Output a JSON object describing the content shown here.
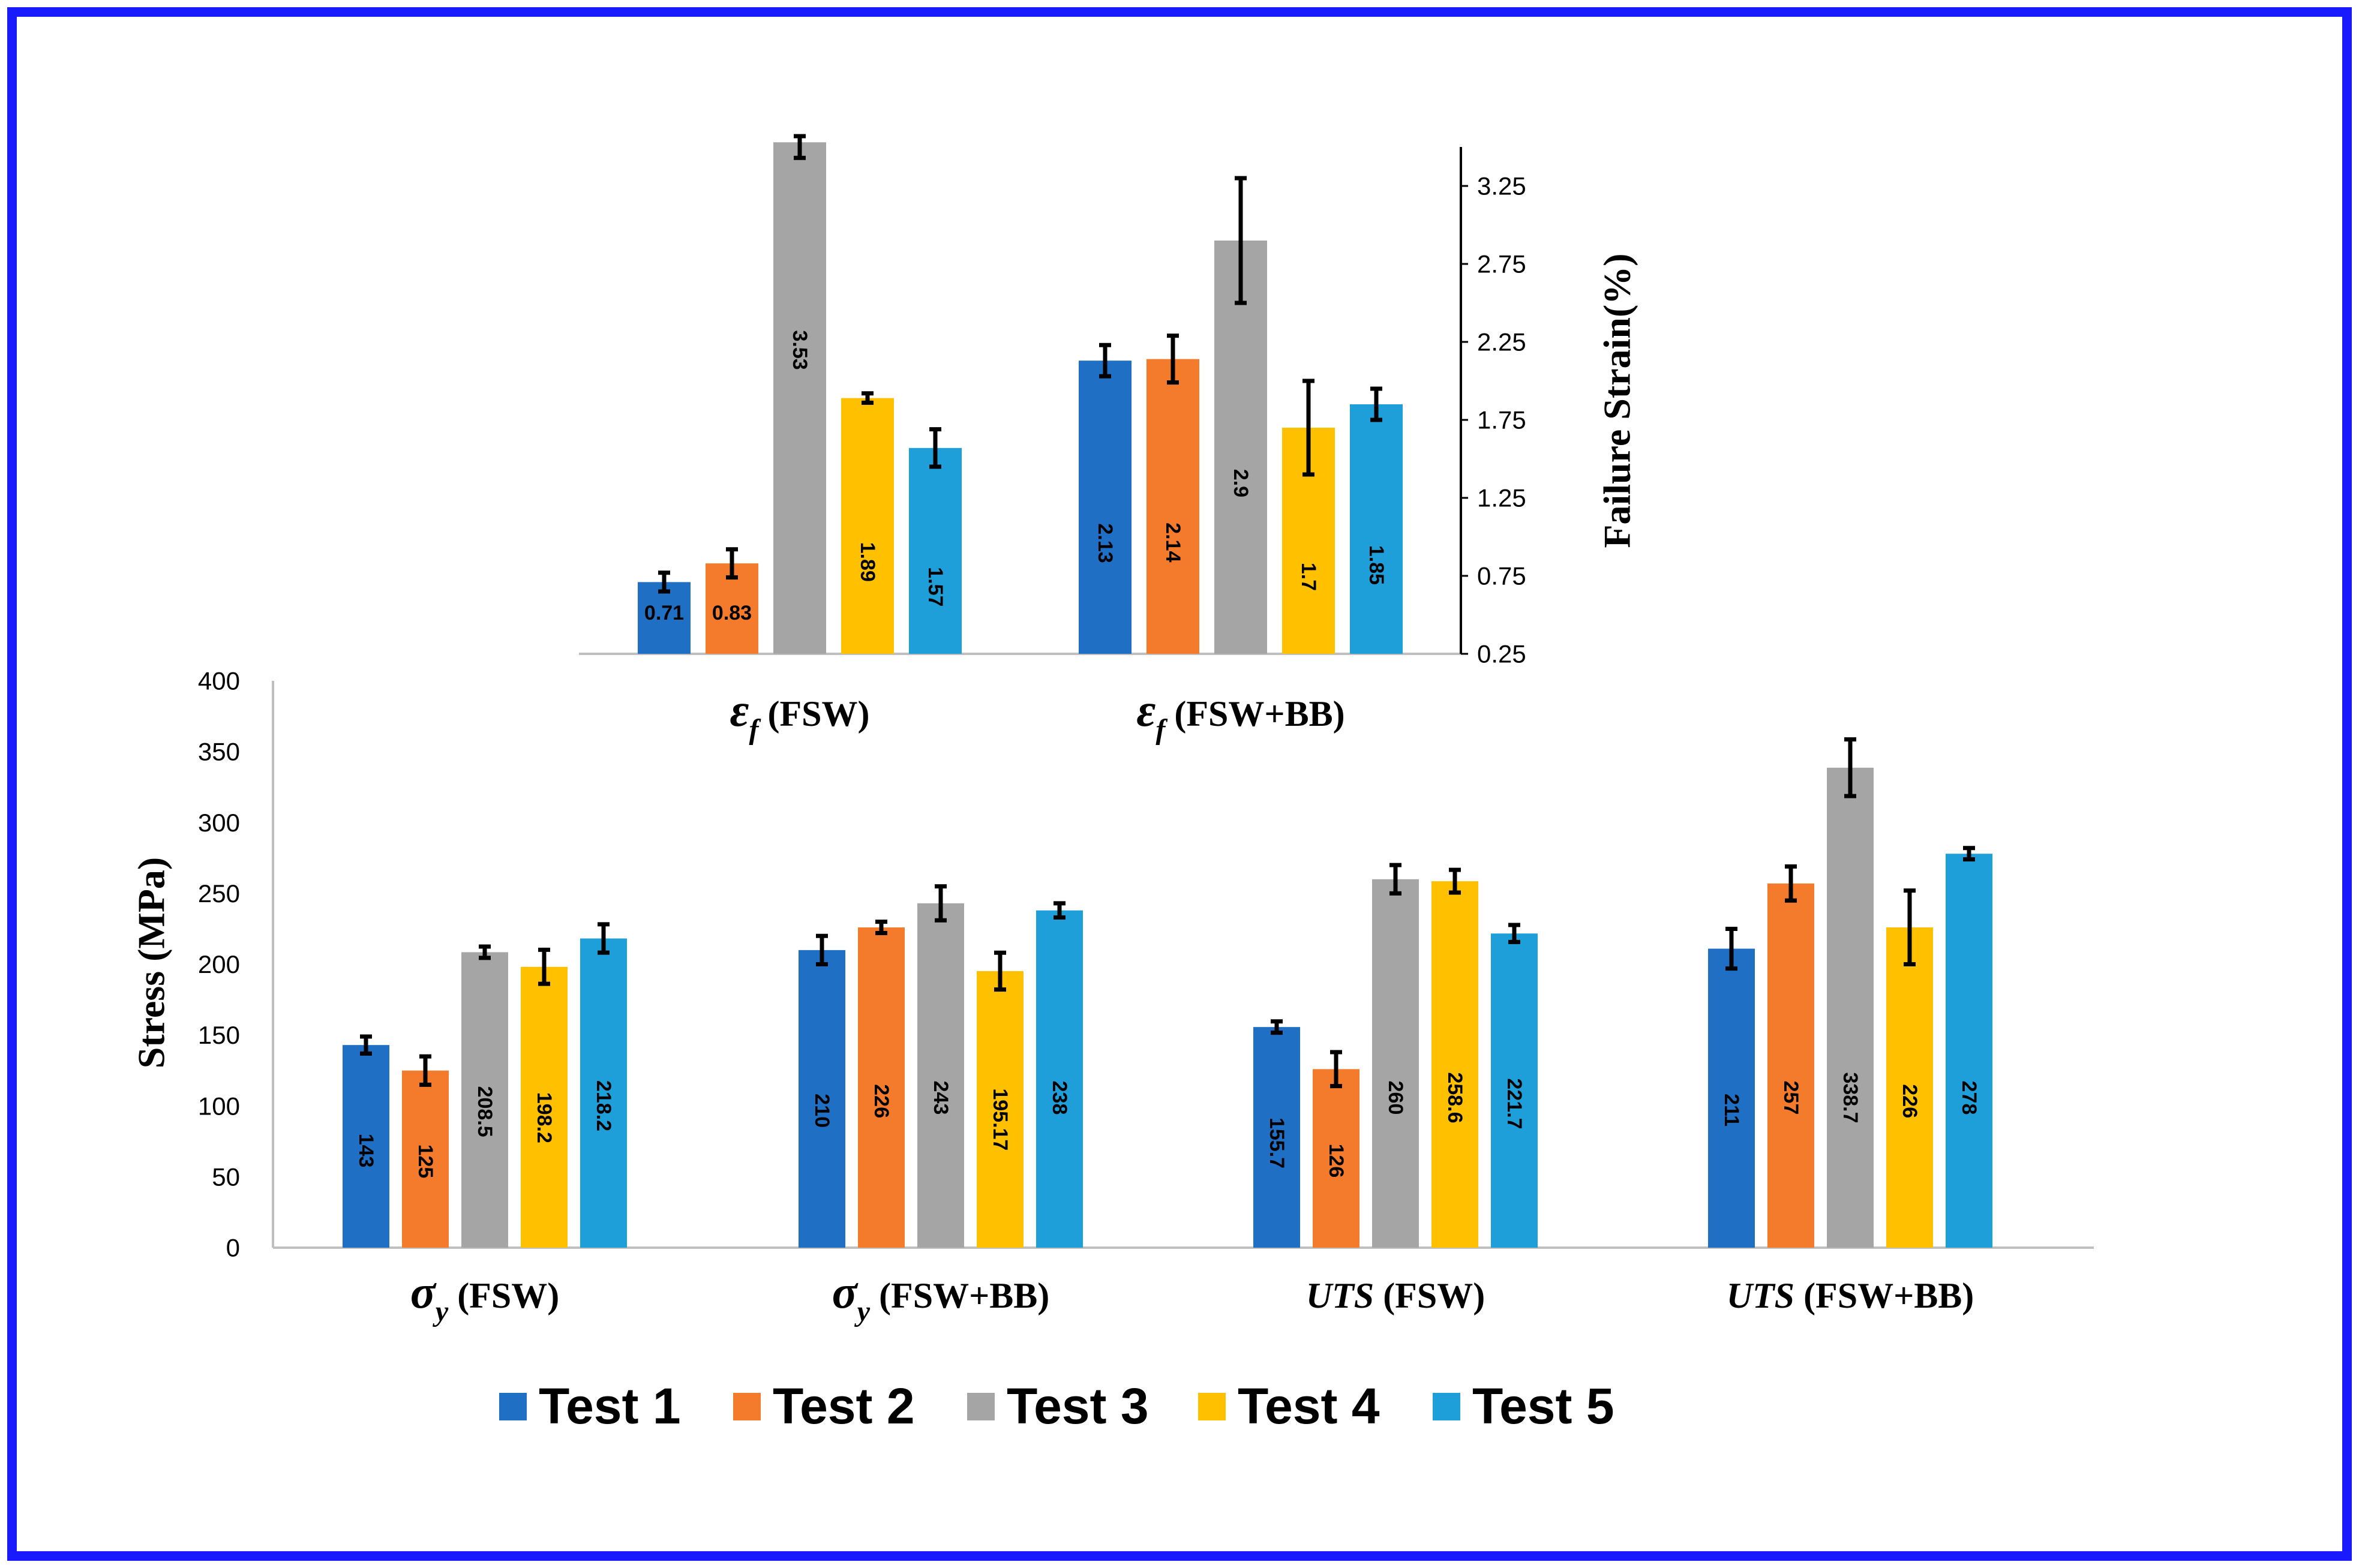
{
  "colors": {
    "frame": "#1a1aff",
    "series": [
      "#1f6fc5",
      "#f47b2b",
      "#a5a5a5",
      "#ffc000",
      "#1f9fd9"
    ],
    "axis": "#bfbfbf",
    "error_bar": "#000000"
  },
  "legend": [
    "Test 1",
    "Test 2",
    "Test 3",
    "Test 4",
    "Test 5"
  ],
  "chart_data": [
    {
      "id": "strain",
      "type": "bar",
      "ylabel": "Failure Strain(%)",
      "ylim": [
        0.25,
        3.5
      ],
      "yticks": [
        "0.25",
        "0.75",
        "1.25",
        "1.75",
        "2.25",
        "2.75",
        "3.25"
      ],
      "y_axis_side": "right",
      "categories": [
        {
          "sym": "ε",
          "sub": "f",
          "text": " (FSW)"
        },
        {
          "sym": "ε",
          "sub": "f",
          "text": " (FSW+BB)"
        }
      ],
      "series": [
        {
          "name": "Test 1",
          "values": [
            0.71,
            2.13
          ],
          "labels": [
            "0.71",
            "2.13"
          ],
          "errors": [
            0.06,
            0.1
          ]
        },
        {
          "name": "Test 2",
          "values": [
            0.83,
            2.14
          ],
          "labels": [
            "0.83",
            "2.14"
          ],
          "errors": [
            0.09,
            0.15
          ]
        },
        {
          "name": "Test 3",
          "values": [
            3.53,
            2.9
          ],
          "labels": [
            "3.53",
            "2.9"
          ],
          "errors": [
            0.1,
            0.4
          ]
        },
        {
          "name": "Test 4",
          "values": [
            1.89,
            1.7
          ],
          "labels": [
            "1.89",
            "1.7"
          ],
          "errors": [
            0.03,
            0.3
          ]
        },
        {
          "name": "Test 5",
          "values": [
            1.57,
            1.85
          ],
          "labels": [
            "1.57",
            "1.85"
          ],
          "errors": [
            0.12,
            0.1
          ]
        }
      ]
    },
    {
      "id": "stress",
      "type": "bar",
      "ylabel": "Stress (MPa)",
      "ylim": [
        0,
        400
      ],
      "yticks": [
        "0",
        "50",
        "100",
        "150",
        "200",
        "250",
        "300",
        "350",
        "400"
      ],
      "y_axis_side": "left",
      "categories": [
        {
          "sym": "σ",
          "sub": "y",
          "text": " (FSW)"
        },
        {
          "sym": "σ",
          "sub": "y",
          "text": " (FSW+BB)"
        },
        {
          "sym": "UTS",
          "sub": "",
          "text": " (FSW)"
        },
        {
          "sym": "UTS",
          "sub": "",
          "text": " (FSW+BB)"
        }
      ],
      "series": [
        {
          "name": "Test 1",
          "values": [
            143,
            210,
            155.7,
            211
          ],
          "labels": [
            "143",
            "210",
            "155.7",
            "211"
          ],
          "errors": [
            6,
            10,
            4,
            14
          ]
        },
        {
          "name": "Test 2",
          "values": [
            125,
            226,
            126,
            257
          ],
          "labels": [
            "125",
            "226",
            "126",
            "257"
          ],
          "errors": [
            10,
            4,
            12,
            12
          ]
        },
        {
          "name": "Test 3",
          "values": [
            208.5,
            243,
            260,
            338.7
          ],
          "labels": [
            "208.5",
            "243",
            "260",
            "338.7"
          ],
          "errors": [
            4,
            12,
            10,
            20
          ]
        },
        {
          "name": "Test 4",
          "values": [
            198.2,
            195.17,
            258.6,
            226
          ],
          "labels": [
            "198.2",
            "195.17",
            "258.6",
            "226"
          ],
          "errors": [
            12,
            13,
            8,
            26
          ]
        },
        {
          "name": "Test 5",
          "values": [
            218.2,
            238,
            221.7,
            278
          ],
          "labels": [
            "218.2",
            "238",
            "221.7",
            "278"
          ],
          "errors": [
            10,
            5,
            6,
            4
          ]
        }
      ]
    }
  ]
}
